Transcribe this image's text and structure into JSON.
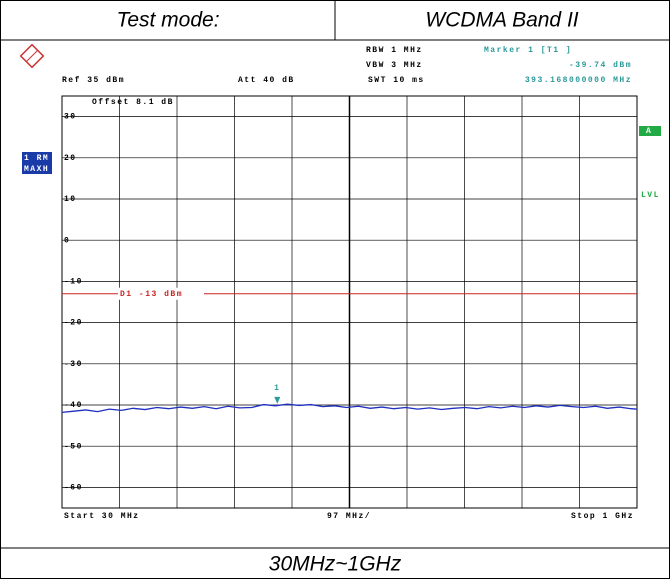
{
  "header": {
    "label": "Test mode:",
    "value": "WCDMA Band II"
  },
  "footer": "30MHz~1GHz",
  "chart_data": {
    "type": "line",
    "ref": "Ref  35 dBm",
    "att": "Att  40 dB",
    "offset": "Offset  8.1 dB",
    "rbw": "RBW  1 MHz",
    "vbw": "VBW  3 MHz",
    "swt": "SWT  10 ms",
    "trace_labels": [
      "1 RM",
      "MAXH"
    ],
    "side_labels": [
      "A",
      "LVL"
    ],
    "start": "Start  30 MHz",
    "span_div": "97 MHz/",
    "stop": "Stop  1 GHz",
    "xlim": [
      30,
      1000
    ],
    "ylim": [
      -65,
      35
    ],
    "yticks": [
      30,
      20,
      10,
      0,
      -10,
      -20,
      -30,
      -40,
      -50,
      -60
    ],
    "display_line": {
      "label": "D1  -13 dBm",
      "value": -13,
      "color": "#cc2222"
    },
    "marker": {
      "title": "Marker 1 [T1 ]",
      "label": "1",
      "x": 393.168,
      "x_label": "393.168000000 MHz",
      "value": -39.74,
      "value_label": "-39.74 dBm",
      "color": "#2a9a9a"
    },
    "series": [
      {
        "color": "#1f2fc0",
        "x": [
          30,
          50,
          70,
          90,
          110,
          130,
          150,
          170,
          190,
          210,
          230,
          250,
          270,
          290,
          310,
          330,
          350,
          370,
          390,
          410,
          430,
          450,
          470,
          490,
          510,
          530,
          550,
          570,
          590,
          610,
          630,
          650,
          670,
          690,
          710,
          730,
          750,
          770,
          790,
          810,
          830,
          850,
          870,
          890,
          910,
          930,
          950,
          970,
          990,
          1000
        ],
        "values": [
          -41.8,
          -41.5,
          -41.2,
          -41.6,
          -41.0,
          -41.3,
          -40.8,
          -41.1,
          -40.6,
          -40.9,
          -40.5,
          -40.8,
          -40.4,
          -40.9,
          -40.3,
          -40.7,
          -40.6,
          -39.9,
          -40.2,
          -39.8,
          -40.1,
          -39.9,
          -40.4,
          -40.2,
          -40.6,
          -40.3,
          -40.8,
          -40.5,
          -40.9,
          -40.6,
          -41.0,
          -40.7,
          -41.1,
          -40.8,
          -40.6,
          -40.9,
          -40.4,
          -40.7,
          -40.3,
          -40.6,
          -40.2,
          -40.5,
          -40.1,
          -40.4,
          -40.6,
          -40.3,
          -40.8,
          -40.5,
          -40.9,
          -41.0
        ]
      }
    ]
  }
}
